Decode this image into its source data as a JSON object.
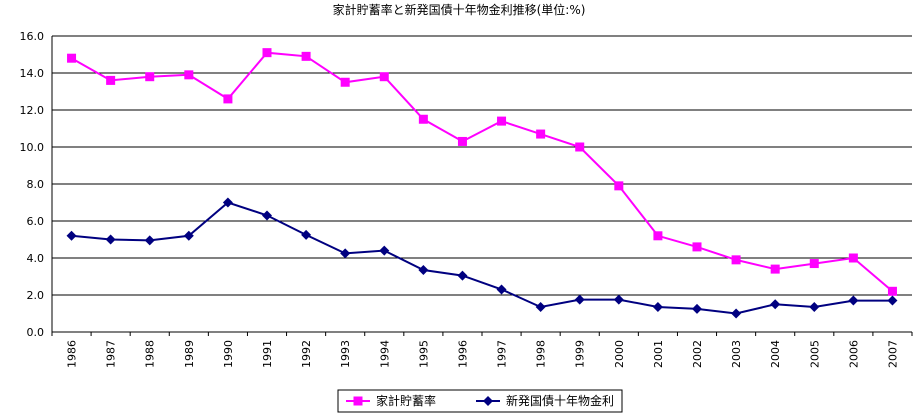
{
  "chart_data": {
    "type": "line",
    "title": "家計貯蓄率と新発国債十年物金利推移(単位:%)",
    "xlabel": "",
    "ylabel": "",
    "x": [
      "1986",
      "1987",
      "1988",
      "1989",
      "1990",
      "1991",
      "1992",
      "1993",
      "1994",
      "1995",
      "1996",
      "1997",
      "1998",
      "1999",
      "2000",
      "2001",
      "2002",
      "2003",
      "2004",
      "2005",
      "2006",
      "2007"
    ],
    "ylim": [
      0,
      16
    ],
    "yticks": [
      "0.0",
      "2.0",
      "4.0",
      "6.0",
      "8.0",
      "10.0",
      "12.0",
      "14.0",
      "16.0"
    ],
    "grid": true,
    "legend_position": "bottom-center",
    "series": [
      {
        "name": "家計貯蓄率",
        "color": "#ff00ff",
        "marker": "square",
        "values": [
          14.8,
          13.6,
          13.8,
          13.9,
          12.6,
          15.1,
          14.9,
          13.5,
          13.8,
          11.5,
          10.3,
          11.4,
          10.7,
          10.0,
          7.9,
          5.2,
          4.6,
          3.9,
          3.4,
          3.7,
          4.0,
          2.2
        ]
      },
      {
        "name": "新発国債十年物金利",
        "color": "#000080",
        "marker": "diamond",
        "values": [
          5.2,
          5.0,
          4.95,
          5.2,
          7.0,
          6.3,
          5.25,
          4.25,
          4.4,
          3.35,
          3.05,
          2.3,
          1.35,
          1.75,
          1.75,
          1.35,
          1.25,
          1.0,
          1.5,
          1.35,
          1.7,
          1.7
        ]
      }
    ]
  }
}
